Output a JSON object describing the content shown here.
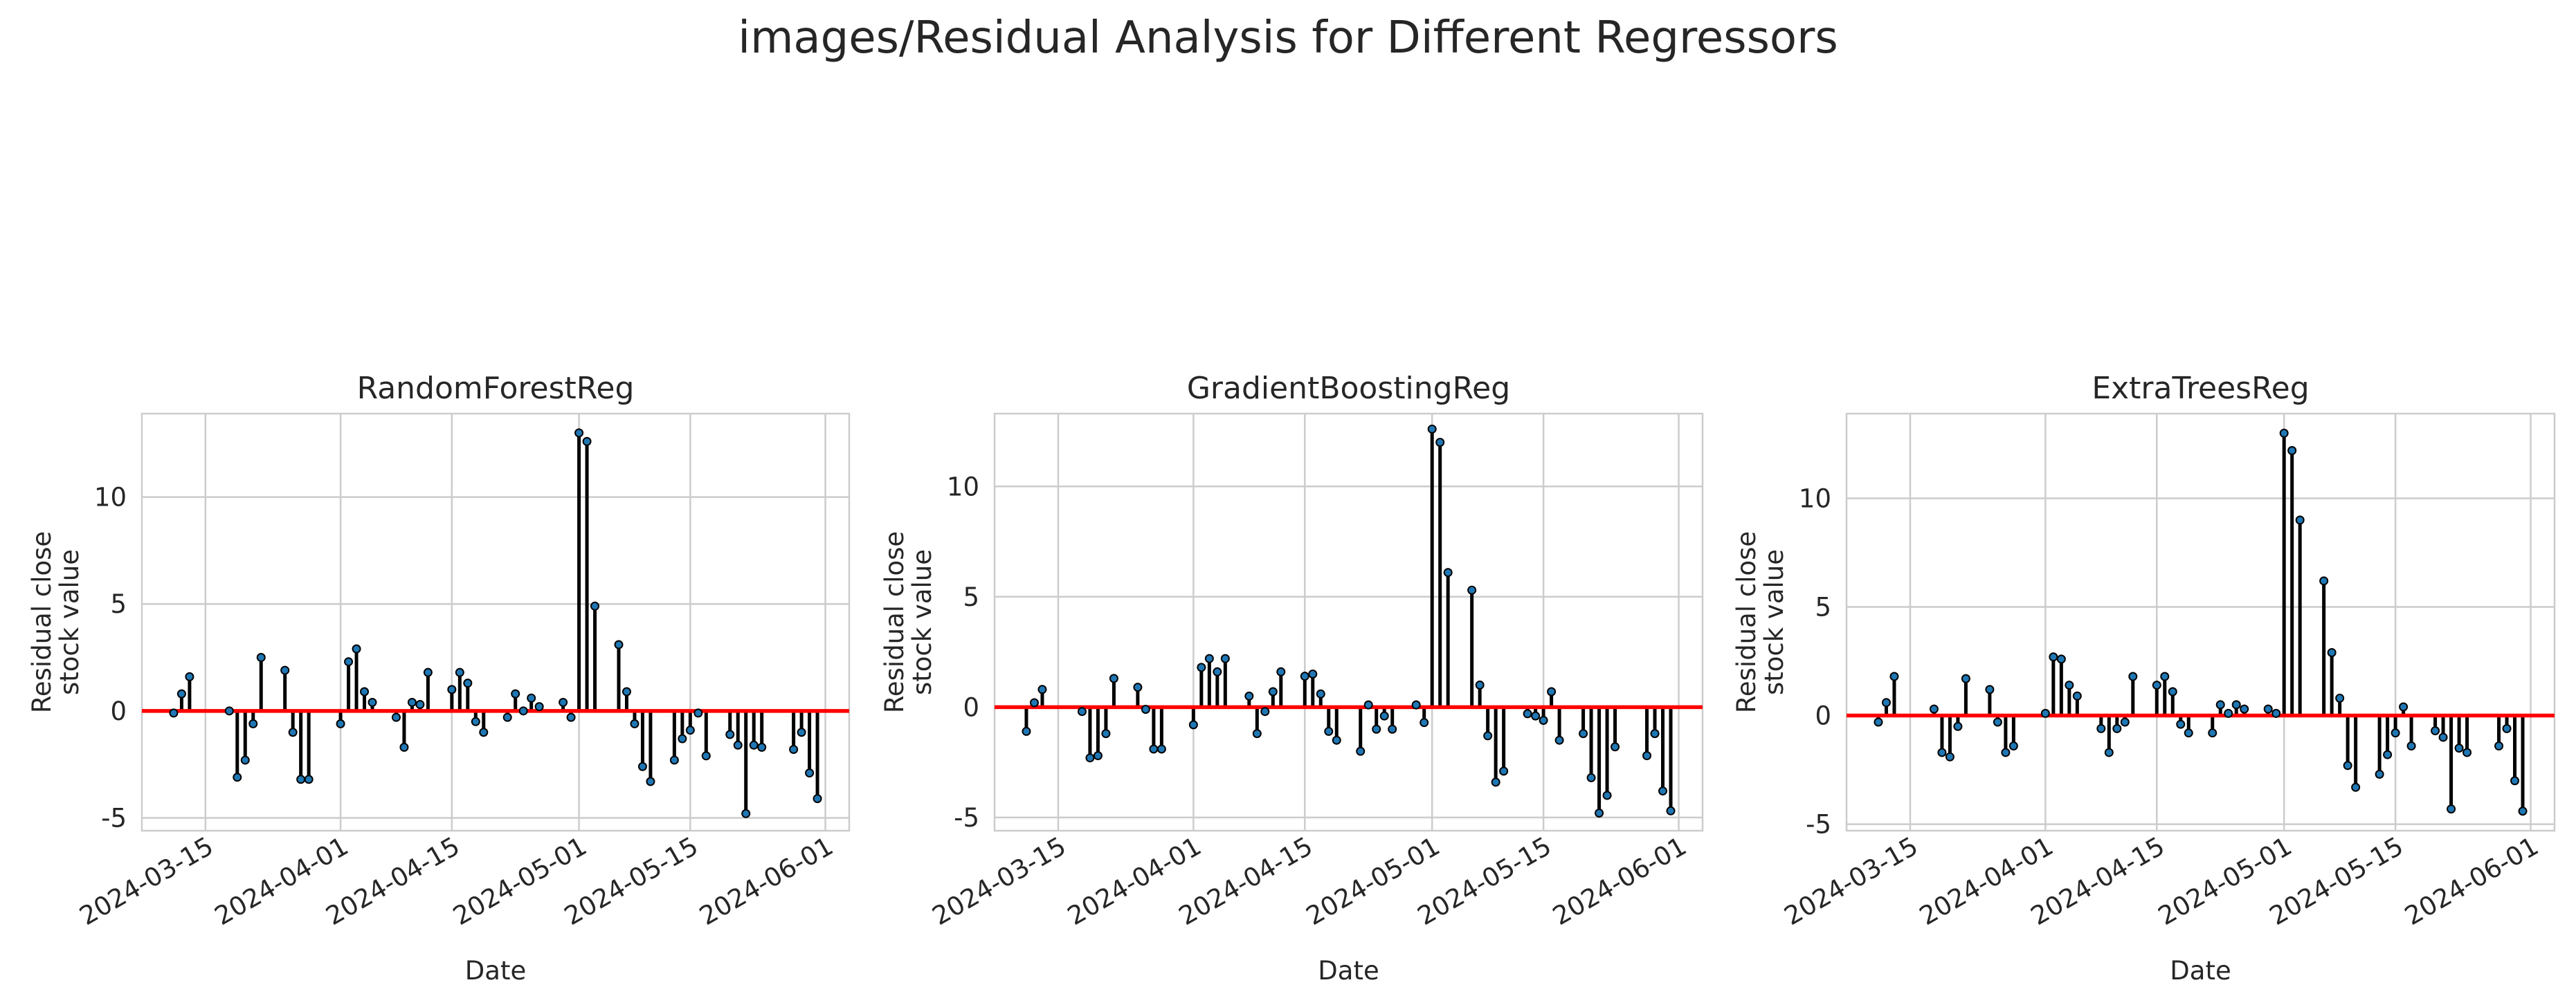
{
  "figure": {
    "suptitle": "images/Residual Analysis for Different Regressors"
  },
  "style": {
    "stem_color": "#000000",
    "marker_color": "#1f77b4",
    "zero_line_color": "#ff0000",
    "grid_color": "#cccccc"
  },
  "chart_data": [
    {
      "type": "stem",
      "title": "RandomForestReg",
      "xlabel": "Date",
      "ylabel_lines": [
        "Residual close",
        "stock value"
      ],
      "x_tick_labels": [
        "2024-03-15",
        "2024-04-01",
        "2024-04-15",
        "2024-05-01",
        "2024-05-15",
        "2024-06-01"
      ],
      "y_ticks": [
        -5,
        0,
        5,
        10
      ],
      "ylim": [
        -5.6,
        13.9
      ],
      "xlim": [
        "2024-03-07",
        "2024-06-04"
      ],
      "grid": true,
      "points": [
        {
          "date": "2024-03-11",
          "value": -0.1
        },
        {
          "date": "2024-03-12",
          "value": 0.8
        },
        {
          "date": "2024-03-13",
          "value": 1.6
        },
        {
          "date": "2024-03-18",
          "value": 0.0
        },
        {
          "date": "2024-03-19",
          "value": -3.1
        },
        {
          "date": "2024-03-20",
          "value": -2.3
        },
        {
          "date": "2024-03-21",
          "value": -0.6
        },
        {
          "date": "2024-03-22",
          "value": 2.5
        },
        {
          "date": "2024-03-25",
          "value": 1.9
        },
        {
          "date": "2024-03-26",
          "value": -1.0
        },
        {
          "date": "2024-03-27",
          "value": -3.2
        },
        {
          "date": "2024-03-28",
          "value": -3.2
        },
        {
          "date": "2024-04-01",
          "value": -0.6
        },
        {
          "date": "2024-04-02",
          "value": 2.3
        },
        {
          "date": "2024-04-03",
          "value": 2.9
        },
        {
          "date": "2024-04-04",
          "value": 0.9
        },
        {
          "date": "2024-04-05",
          "value": 0.4
        },
        {
          "date": "2024-04-08",
          "value": -0.3
        },
        {
          "date": "2024-04-09",
          "value": -1.7
        },
        {
          "date": "2024-04-10",
          "value": 0.4
        },
        {
          "date": "2024-04-11",
          "value": 0.3
        },
        {
          "date": "2024-04-12",
          "value": 1.8
        },
        {
          "date": "2024-04-15",
          "value": 1.0
        },
        {
          "date": "2024-04-16",
          "value": 1.8
        },
        {
          "date": "2024-04-17",
          "value": 1.3
        },
        {
          "date": "2024-04-18",
          "value": -0.5
        },
        {
          "date": "2024-04-19",
          "value": -1.0
        },
        {
          "date": "2024-04-22",
          "value": -0.3
        },
        {
          "date": "2024-04-23",
          "value": 0.8
        },
        {
          "date": "2024-04-24",
          "value": 0.0
        },
        {
          "date": "2024-04-25",
          "value": 0.6
        },
        {
          "date": "2024-04-26",
          "value": 0.2
        },
        {
          "date": "2024-04-29",
          "value": 0.4
        },
        {
          "date": "2024-04-30",
          "value": -0.3
        },
        {
          "date": "2024-05-01",
          "value": 13.0
        },
        {
          "date": "2024-05-02",
          "value": 12.6
        },
        {
          "date": "2024-05-03",
          "value": 4.9
        },
        {
          "date": "2024-05-06",
          "value": 3.1
        },
        {
          "date": "2024-05-07",
          "value": 0.9
        },
        {
          "date": "2024-05-08",
          "value": -0.6
        },
        {
          "date": "2024-05-09",
          "value": -2.6
        },
        {
          "date": "2024-05-10",
          "value": -3.3
        },
        {
          "date": "2024-05-13",
          "value": -2.3
        },
        {
          "date": "2024-05-14",
          "value": -1.3
        },
        {
          "date": "2024-05-15",
          "value": -0.9
        },
        {
          "date": "2024-05-16",
          "value": -0.1
        },
        {
          "date": "2024-05-17",
          "value": -2.1
        },
        {
          "date": "2024-05-20",
          "value": -1.1
        },
        {
          "date": "2024-05-21",
          "value": -1.6
        },
        {
          "date": "2024-05-22",
          "value": -4.8
        },
        {
          "date": "2024-05-23",
          "value": -1.6
        },
        {
          "date": "2024-05-24",
          "value": -1.7
        },
        {
          "date": "2024-05-28",
          "value": -1.8
        },
        {
          "date": "2024-05-29",
          "value": -1.0
        },
        {
          "date": "2024-05-30",
          "value": -2.9
        },
        {
          "date": "2024-05-31",
          "value": -4.1
        }
      ]
    },
    {
      "type": "stem",
      "title": "GradientBoostingReg",
      "xlabel": "Date",
      "ylabel_lines": [
        "Residual close",
        "stock value"
      ],
      "x_tick_labels": [
        "2024-03-15",
        "2024-04-01",
        "2024-04-15",
        "2024-05-01",
        "2024-05-15",
        "2024-06-01"
      ],
      "y_ticks": [
        -5,
        0,
        5,
        10
      ],
      "ylim": [
        -5.6,
        13.3
      ],
      "xlim": [
        "2024-03-07",
        "2024-06-04"
      ],
      "grid": true,
      "points": [
        {
          "date": "2024-03-11",
          "value": -1.1
        },
        {
          "date": "2024-03-12",
          "value": 0.2
        },
        {
          "date": "2024-03-13",
          "value": 0.8
        },
        {
          "date": "2024-03-18",
          "value": -0.2
        },
        {
          "date": "2024-03-19",
          "value": -2.3
        },
        {
          "date": "2024-03-20",
          "value": -2.2
        },
        {
          "date": "2024-03-21",
          "value": -1.2
        },
        {
          "date": "2024-03-22",
          "value": 1.3
        },
        {
          "date": "2024-03-25",
          "value": 0.9
        },
        {
          "date": "2024-03-26",
          "value": -0.1
        },
        {
          "date": "2024-03-27",
          "value": -1.9
        },
        {
          "date": "2024-03-28",
          "value": -1.9
        },
        {
          "date": "2024-04-01",
          "value": -0.8
        },
        {
          "date": "2024-04-02",
          "value": 1.8
        },
        {
          "date": "2024-04-03",
          "value": 2.2
        },
        {
          "date": "2024-04-04",
          "value": 1.6
        },
        {
          "date": "2024-04-05",
          "value": 2.2
        },
        {
          "date": "2024-04-08",
          "value": 0.5
        },
        {
          "date": "2024-04-09",
          "value": -1.2
        },
        {
          "date": "2024-04-10",
          "value": -0.2
        },
        {
          "date": "2024-04-11",
          "value": 0.7
        },
        {
          "date": "2024-04-12",
          "value": 1.6
        },
        {
          "date": "2024-04-15",
          "value": 1.4
        },
        {
          "date": "2024-04-16",
          "value": 1.5
        },
        {
          "date": "2024-04-17",
          "value": 0.6
        },
        {
          "date": "2024-04-18",
          "value": -1.1
        },
        {
          "date": "2024-04-19",
          "value": -1.5
        },
        {
          "date": "2024-04-22",
          "value": -2.0
        },
        {
          "date": "2024-04-23",
          "value": 0.1
        },
        {
          "date": "2024-04-24",
          "value": -1.0
        },
        {
          "date": "2024-04-25",
          "value": -0.4
        },
        {
          "date": "2024-04-26",
          "value": -1.0
        },
        {
          "date": "2024-04-29",
          "value": 0.1
        },
        {
          "date": "2024-04-30",
          "value": -0.7
        },
        {
          "date": "2024-05-01",
          "value": 12.6
        },
        {
          "date": "2024-05-02",
          "value": 12.0
        },
        {
          "date": "2024-05-03",
          "value": 6.1
        },
        {
          "date": "2024-05-06",
          "value": 5.3
        },
        {
          "date": "2024-05-07",
          "value": 1.0
        },
        {
          "date": "2024-05-08",
          "value": -1.3
        },
        {
          "date": "2024-05-09",
          "value": -3.4
        },
        {
          "date": "2024-05-10",
          "value": -2.9
        },
        {
          "date": "2024-05-13",
          "value": -0.3
        },
        {
          "date": "2024-05-14",
          "value": -0.4
        },
        {
          "date": "2024-05-15",
          "value": -0.6
        },
        {
          "date": "2024-05-16",
          "value": 0.7
        },
        {
          "date": "2024-05-17",
          "value": -1.5
        },
        {
          "date": "2024-05-20",
          "value": -1.2
        },
        {
          "date": "2024-05-21",
          "value": -3.2
        },
        {
          "date": "2024-05-22",
          "value": -4.8
        },
        {
          "date": "2024-05-23",
          "value": -4.0
        },
        {
          "date": "2024-05-24",
          "value": -1.8
        },
        {
          "date": "2024-05-28",
          "value": -2.2
        },
        {
          "date": "2024-05-29",
          "value": -1.2
        },
        {
          "date": "2024-05-30",
          "value": -3.8
        },
        {
          "date": "2024-05-31",
          "value": -4.7
        }
      ]
    },
    {
      "type": "stem",
      "title": "ExtraTreesReg",
      "xlabel": "Date",
      "ylabel_lines": [
        "Residual close",
        "stock value"
      ],
      "x_tick_labels": [
        "2024-03-15",
        "2024-04-01",
        "2024-04-15",
        "2024-05-01",
        "2024-05-15",
        "2024-06-01"
      ],
      "y_ticks": [
        -5,
        0,
        5,
        10
      ],
      "ylim": [
        -5.3,
        13.9
      ],
      "xlim": [
        "2024-03-07",
        "2024-06-04"
      ],
      "grid": true,
      "points": [
        {
          "date": "2024-03-11",
          "value": -0.3
        },
        {
          "date": "2024-03-12",
          "value": 0.6
        },
        {
          "date": "2024-03-13",
          "value": 1.8
        },
        {
          "date": "2024-03-18",
          "value": 0.3
        },
        {
          "date": "2024-03-19",
          "value": -1.7
        },
        {
          "date": "2024-03-20",
          "value": -1.9
        },
        {
          "date": "2024-03-21",
          "value": -0.5
        },
        {
          "date": "2024-03-22",
          "value": 1.7
        },
        {
          "date": "2024-03-25",
          "value": 1.2
        },
        {
          "date": "2024-03-26",
          "value": -0.3
        },
        {
          "date": "2024-03-27",
          "value": -1.7
        },
        {
          "date": "2024-03-28",
          "value": -1.4
        },
        {
          "date": "2024-04-01",
          "value": 0.1
        },
        {
          "date": "2024-04-02",
          "value": 2.7
        },
        {
          "date": "2024-04-03",
          "value": 2.6
        },
        {
          "date": "2024-04-04",
          "value": 1.4
        },
        {
          "date": "2024-04-05",
          "value": 0.9
        },
        {
          "date": "2024-04-08",
          "value": -0.6
        },
        {
          "date": "2024-04-09",
          "value": -1.7
        },
        {
          "date": "2024-04-10",
          "value": -0.6
        },
        {
          "date": "2024-04-11",
          "value": -0.3
        },
        {
          "date": "2024-04-12",
          "value": 1.8
        },
        {
          "date": "2024-04-15",
          "value": 1.4
        },
        {
          "date": "2024-04-16",
          "value": 1.8
        },
        {
          "date": "2024-04-17",
          "value": 1.1
        },
        {
          "date": "2024-04-18",
          "value": -0.4
        },
        {
          "date": "2024-04-19",
          "value": -0.8
        },
        {
          "date": "2024-04-22",
          "value": -0.8
        },
        {
          "date": "2024-04-23",
          "value": 0.5
        },
        {
          "date": "2024-04-24",
          "value": 0.1
        },
        {
          "date": "2024-04-25",
          "value": 0.5
        },
        {
          "date": "2024-04-26",
          "value": 0.3
        },
        {
          "date": "2024-04-29",
          "value": 0.3
        },
        {
          "date": "2024-04-30",
          "value": 0.1
        },
        {
          "date": "2024-05-01",
          "value": 13.0
        },
        {
          "date": "2024-05-02",
          "value": 12.2
        },
        {
          "date": "2024-05-03",
          "value": 9.0
        },
        {
          "date": "2024-05-06",
          "value": 6.2
        },
        {
          "date": "2024-05-07",
          "value": 2.9
        },
        {
          "date": "2024-05-08",
          "value": 0.8
        },
        {
          "date": "2024-05-09",
          "value": -2.3
        },
        {
          "date": "2024-05-10",
          "value": -3.3
        },
        {
          "date": "2024-05-13",
          "value": -2.7
        },
        {
          "date": "2024-05-14",
          "value": -1.8
        },
        {
          "date": "2024-05-15",
          "value": -0.8
        },
        {
          "date": "2024-05-16",
          "value": 0.4
        },
        {
          "date": "2024-05-17",
          "value": -1.4
        },
        {
          "date": "2024-05-20",
          "value": -0.7
        },
        {
          "date": "2024-05-21",
          "value": -1.0
        },
        {
          "date": "2024-05-22",
          "value": -4.3
        },
        {
          "date": "2024-05-23",
          "value": -1.5
        },
        {
          "date": "2024-05-24",
          "value": -1.7
        },
        {
          "date": "2024-05-28",
          "value": -1.4
        },
        {
          "date": "2024-05-29",
          "value": -0.6
        },
        {
          "date": "2024-05-30",
          "value": -3.0
        },
        {
          "date": "2024-05-31",
          "value": -4.4
        }
      ]
    }
  ]
}
